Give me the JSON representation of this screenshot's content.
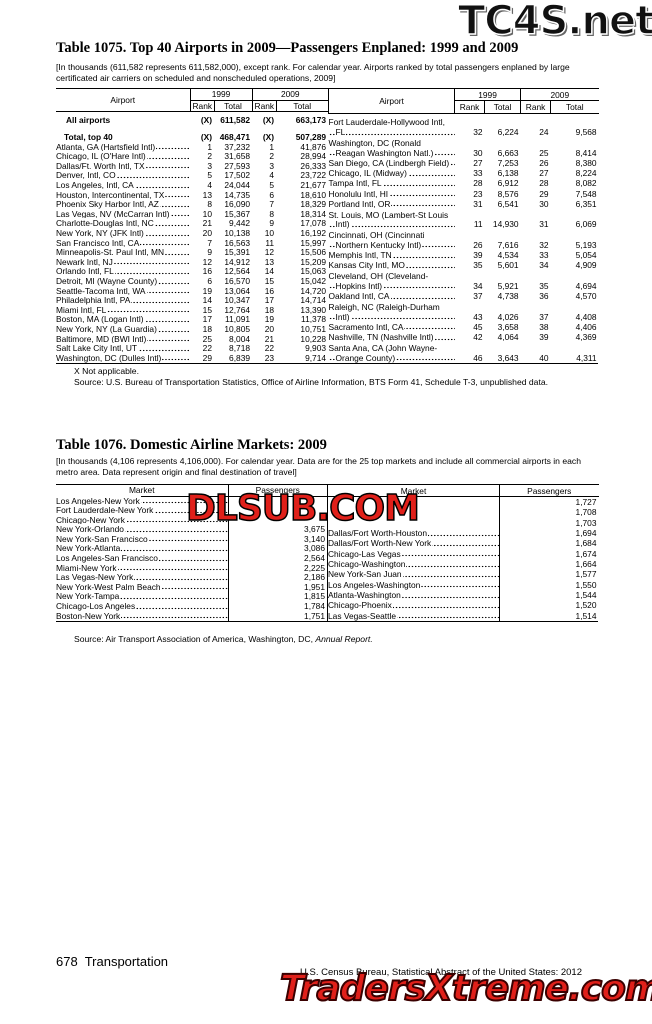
{
  "watermarks": {
    "top": "TC4S.net",
    "middle": "DLSUB.COM",
    "bottom": "TradersXtreme.com"
  },
  "table1075": {
    "title": "Table 1075. Top 40 Airports in 2009—Passengers Enplaned: 1999 and 2009",
    "headnote": "[In thousands (611,582 represents 611,582,000), except rank. For calendar year. Airports ranked by total passengers enplaned by large certificated air carriers on scheduled and nonscheduled operations, 2009]",
    "headers": {
      "airport": "Airport",
      "y1999": "1999",
      "y2009": "2009",
      "rank": "Rank",
      "total": "Total"
    },
    "left": [
      [
        "All airports",
        "(X)",
        "611,582",
        "(X)",
        "663,173"
      ],
      [
        "Total, top 40",
        "(X)",
        "468,471",
        "(X)",
        "507,289"
      ],
      [
        "Atlanta, GA (Hartsfield Intl)",
        "1",
        "37,232",
        "1",
        "41,876"
      ],
      [
        "Chicago, IL (O'Hare Intl)",
        "2",
        "31,658",
        "2",
        "28,994"
      ],
      [
        "Dallas/Ft. Worth Intl, TX",
        "3",
        "27,593",
        "3",
        "26,333"
      ],
      [
        "Denver, Intl, CO",
        "5",
        "17,502",
        "4",
        "23,722"
      ],
      [
        "Los Angeles, Intl, CA",
        "4",
        "24,044",
        "5",
        "21,677"
      ],
      [
        "Houston, Intercontinental, TX",
        "13",
        "14,735",
        "6",
        "18,610"
      ],
      [
        "Phoenix Sky Harbor Intl, AZ",
        "8",
        "16,090",
        "7",
        "18,329"
      ],
      [
        "Las Vegas, NV (McCarran Intl)",
        "10",
        "15,367",
        "8",
        "18,314"
      ],
      [
        "Charlotte-Douglas Intl, NC",
        "21",
        "9,442",
        "9",
        "17,078"
      ],
      [
        "New York, NY (JFK Intl)",
        "20",
        "10,138",
        "10",
        "16,192"
      ],
      [
        "San Francisco Intl, CA",
        "7",
        "16,563",
        "11",
        "15,997"
      ],
      [
        "Minneapolis-St. Paul Intl, MN",
        "9",
        "15,391",
        "12",
        "15,506"
      ],
      [
        "Newark Intl, NJ",
        "12",
        "14,912",
        "13",
        "15,209"
      ],
      [
        "Orlando Intl, FL",
        "16",
        "12,564",
        "14",
        "15,063"
      ],
      [
        "Detroit, MI (Wayne County)",
        "6",
        "16,570",
        "15",
        "15,042"
      ],
      [
        "Seattle-Tacoma Intl, WA",
        "19",
        "13,064",
        "16",
        "14,720"
      ],
      [
        "Philadelphia Intl, PA",
        "14",
        "10,347",
        "17",
        "14,714"
      ],
      [
        "Miami Intl, FL",
        "15",
        "12,764",
        "18",
        "13,390"
      ],
      [
        "Boston, MA (Logan Intl)",
        "17",
        "11,091",
        "19",
        "11,378"
      ],
      [
        "New York, NY (La Guardia)",
        "18",
        "10,805",
        "20",
        "10,751"
      ],
      [
        "Baltimore, MD (BWI Intl)",
        "25",
        "8,004",
        "21",
        "10,228"
      ],
      [
        "Salt Lake City Intl, UT",
        "22",
        "8,718",
        "22",
        "9,903"
      ],
      [
        "Washington, DC (Dulles Intl)",
        "29",
        "6,839",
        "23",
        "9,714"
      ]
    ],
    "right": [
      [
        "Fort Lauderdale-Hollywood Intl, FL",
        "32",
        "6,224",
        "24",
        "9,568"
      ],
      [
        "Washington, DC (Ronald Reagan Washington Natl.)",
        "30",
        "6,663",
        "25",
        "8,414"
      ],
      [
        "San Diego, CA (Lindbergh Field)",
        "27",
        "7,253",
        "26",
        "8,380"
      ],
      [
        "Chicago, IL (Midway)",
        "33",
        "6,138",
        "27",
        "8,224"
      ],
      [
        "Tampa Intl, FL",
        "28",
        "6,912",
        "28",
        "8,082"
      ],
      [
        "Honolulu Intl, HI",
        "23",
        "8,576",
        "29",
        "7,548"
      ],
      [
        "Portland Intl, OR",
        "31",
        "6,541",
        "30",
        "6,351"
      ],
      [
        "St. Louis, MO (Lambert-St Louis Intl)",
        "11",
        "14,930",
        "31",
        "6,069"
      ],
      [
        "Cincinnati, OH (Cincinnati Northern Kentucky Intl)",
        "26",
        "7,616",
        "32",
        "5,193"
      ],
      [
        "Memphis Intl, TN",
        "39",
        "4,534",
        "33",
        "5,054"
      ],
      [
        "Kansas City Intl, MO",
        "35",
        "5,601",
        "34",
        "4,909"
      ],
      [
        "Cleveland, OH (Cleveland-Hopkins Intl)",
        "34",
        "5,921",
        "35",
        "4,694"
      ],
      [
        "Oakland Intl, CA",
        "37",
        "4,738",
        "36",
        "4,570"
      ],
      [
        "Raleigh, NC (Raleigh-Durham Intl)",
        "43",
        "4,026",
        "37",
        "4,408"
      ],
      [
        "Sacramento Intl, CA",
        "45",
        "3,658",
        "38",
        "4,406"
      ],
      [
        "Nashville, TN (Nashville Intl)",
        "42",
        "4,064",
        "39",
        "4,369"
      ],
      [
        "Santa Ana, CA (John Wayne-Orange County)",
        "46",
        "3,643",
        "40",
        "4,311"
      ]
    ],
    "footnote": "X Not applicable.",
    "source": "Source: U.S. Bureau of Transportation Statistics, Office of Airline Information, BTS Form 41, Schedule T-3, unpublished data."
  },
  "table1076": {
    "title": "Table 1076. Domestic Airline Markets: 2009",
    "headnote": "[In thousands (4,106 represents 4,106,000). For calendar year. Data are for the 25 top markets and include all commercial airports in each metro area. Data represent origin and final destination of travel]",
    "headers": {
      "market": "Market",
      "passengers": "Passengers"
    },
    "left": [
      [
        "Los Angeles-New York",
        null
      ],
      [
        "Fort Lauderdale-New York",
        null
      ],
      [
        "Chicago-New York",
        null
      ],
      [
        "New York-Orlando",
        "3,675"
      ],
      [
        "New York-San Francisco",
        "3,140"
      ],
      [
        "New York-Atlanta",
        "3,086"
      ],
      [
        "Los Angeles-San Francisco",
        "2,564"
      ],
      [
        "Miami-New York",
        "2,225"
      ],
      [
        "Las Vegas-New York",
        "2,186"
      ],
      [
        "New York-West Palm Beach",
        "1,951"
      ],
      [
        "New York-Tampa",
        "1,815"
      ],
      [
        "Chicago-Los Angeles",
        "1,784"
      ],
      [
        "Boston-New York",
        "1,751"
      ]
    ],
    "right": [
      [
        null,
        "1,727"
      ],
      [
        null,
        "1,708"
      ],
      [
        null,
        "1,703"
      ],
      [
        "Dallas/Fort Worth-Houston",
        "1,694"
      ],
      [
        "Dallas/Fort Worth-New York",
        "1,684"
      ],
      [
        "Chicago-Las Vegas",
        "1,674"
      ],
      [
        "Chicago-Washington",
        "1,664"
      ],
      [
        "New York-San Juan",
        "1,577"
      ],
      [
        "Los Angeles-Washington",
        "1,550"
      ],
      [
        "Atlanta-Washington",
        "1,544"
      ],
      [
        "Chicago-Phoenix",
        "1,520"
      ],
      [
        "Las Vegas-Seattle",
        "1,514"
      ]
    ],
    "source_prefix": "Source: Air Transport Association of America, Washington, DC,",
    "source_italic": "Annual Report."
  },
  "footer": {
    "page": "678",
    "section": "Transportation",
    "credit": "U.S. Census Bureau, Statistical Abstract of the United States: 2012"
  }
}
